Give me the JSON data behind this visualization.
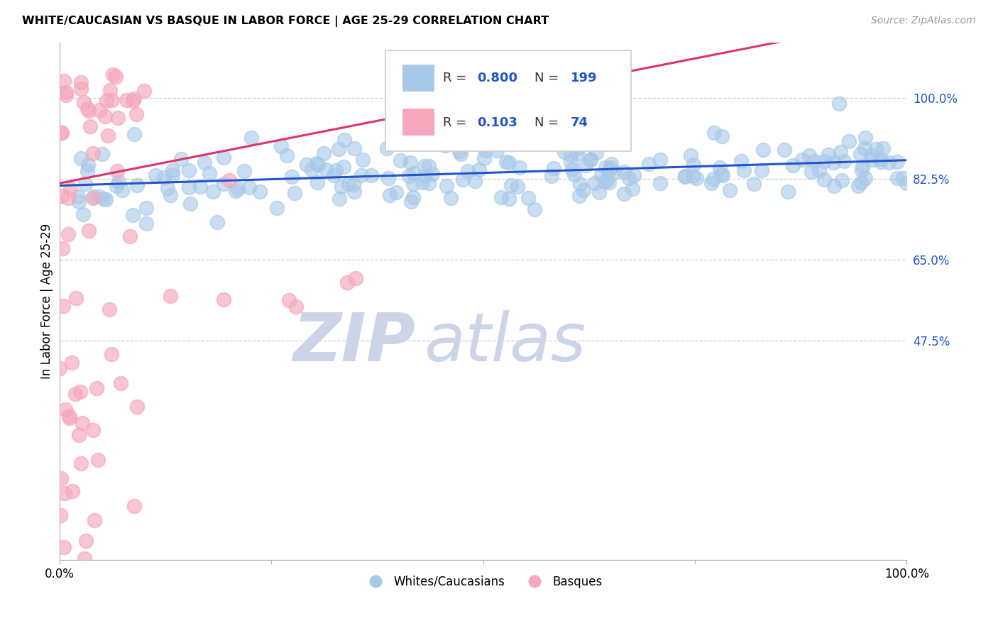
{
  "title": "WHITE/CAUCASIAN VS BASQUE IN LABOR FORCE | AGE 25-29 CORRELATION CHART",
  "source": "Source: ZipAtlas.com",
  "ylabel": "In Labor Force | Age 25-29",
  "xlim": [
    0.0,
    1.0
  ],
  "ylim": [
    0.0,
    1.12
  ],
  "blue_R": 0.8,
  "blue_N": 199,
  "pink_R": 0.103,
  "pink_N": 74,
  "blue_color": "#a8c8e8",
  "pink_color": "#f5a8bb",
  "blue_line_color": "#2255cc",
  "pink_line_color": "#dd3366",
  "ytick_labels": [
    "100.0%",
    "82.5%",
    "65.0%",
    "47.5%"
  ],
  "ytick_values": [
    1.0,
    0.825,
    0.65,
    0.475
  ],
  "xtick_labels": [
    "0.0%",
    "100.0%"
  ],
  "xtick_values": [
    0.0,
    1.0
  ],
  "grid_color": "#cccccc",
  "watermark_zip": "ZIP",
  "watermark_atlas": "atlas",
  "watermark_color": "#ccd5e8",
  "legend_label_blue": "Whites/Caucasians",
  "legend_label_pink": "Basques",
  "background_color": "#ffffff",
  "blue_slope": 0.055,
  "blue_intercept": 0.81,
  "pink_slope": 0.36,
  "pink_intercept": 0.815
}
